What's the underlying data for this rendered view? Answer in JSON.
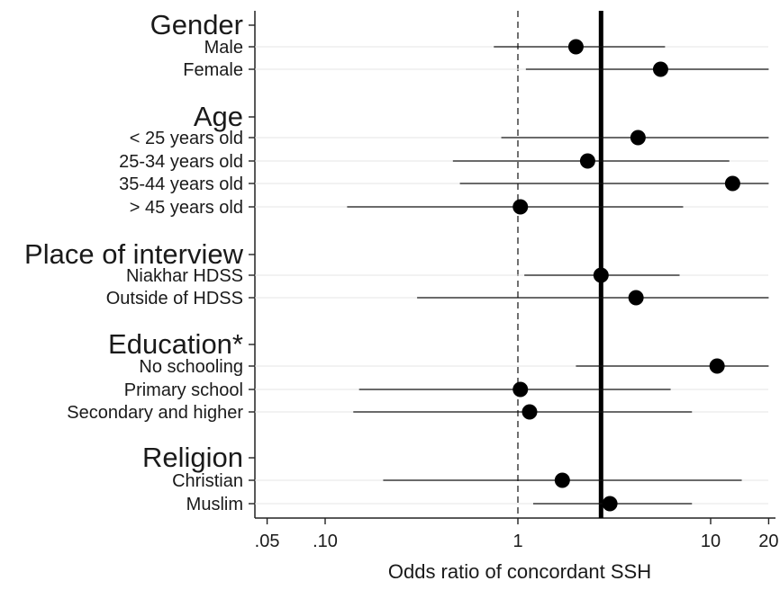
{
  "chart_data": {
    "type": "forest",
    "xlabel": "Odds ratio of concordant SSH",
    "x_scale": "log",
    "xlim": [
      0.04,
      21
    ],
    "xticks": [
      {
        "value": 0.05,
        "label": ".05"
      },
      {
        "value": 0.1,
        "label": ".10"
      },
      {
        "value": 1,
        "label": "1"
      },
      {
        "value": 10,
        "label": "10"
      },
      {
        "value": 20,
        "label": "20"
      }
    ],
    "reference_line": 1,
    "overall_line": 2.7,
    "groups": [
      {
        "title": "Gender",
        "rows": [
          {
            "label": "Male",
            "or": 2.0,
            "lo": 0.75,
            "hi": 5.8
          },
          {
            "label": "Female",
            "or": 5.5,
            "lo": 1.1,
            "hi": 20
          }
        ]
      },
      {
        "title": "Age",
        "rows": [
          {
            "label": "< 25 years old",
            "or": 4.2,
            "lo": 0.82,
            "hi": 20
          },
          {
            "label": "25-34 years old",
            "or": 2.3,
            "lo": 0.46,
            "hi": 12.5
          },
          {
            "label": "35-44 years old",
            "or": 13.0,
            "lo": 0.5,
            "hi": 20
          },
          {
            "label": "> 45 years old",
            "or": 1.03,
            "lo": 0.13,
            "hi": 7.2
          }
        ]
      },
      {
        "title": "Place of interview",
        "rows": [
          {
            "label": "Niakhar HDSS",
            "or": 2.7,
            "lo": 1.08,
            "hi": 6.9
          },
          {
            "label": "Outside of HDSS",
            "or": 4.1,
            "lo": 0.3,
            "hi": 20
          }
        ]
      },
      {
        "title": "Education*",
        "rows": [
          {
            "label": "No schooling",
            "or": 10.8,
            "lo": 2.0,
            "hi": 20
          },
          {
            "label": "Primary school",
            "or": 1.03,
            "lo": 0.15,
            "hi": 6.2
          },
          {
            "label": "Secondary and higher",
            "or": 1.15,
            "lo": 0.14,
            "hi": 8.0
          }
        ]
      },
      {
        "title": "Religion",
        "rows": [
          {
            "label": "Christian",
            "or": 1.7,
            "lo": 0.2,
            "hi": 14.5
          },
          {
            "label": "Muslim",
            "or": 3.0,
            "lo": 1.2,
            "hi": 8.0
          }
        ]
      }
    ]
  }
}
